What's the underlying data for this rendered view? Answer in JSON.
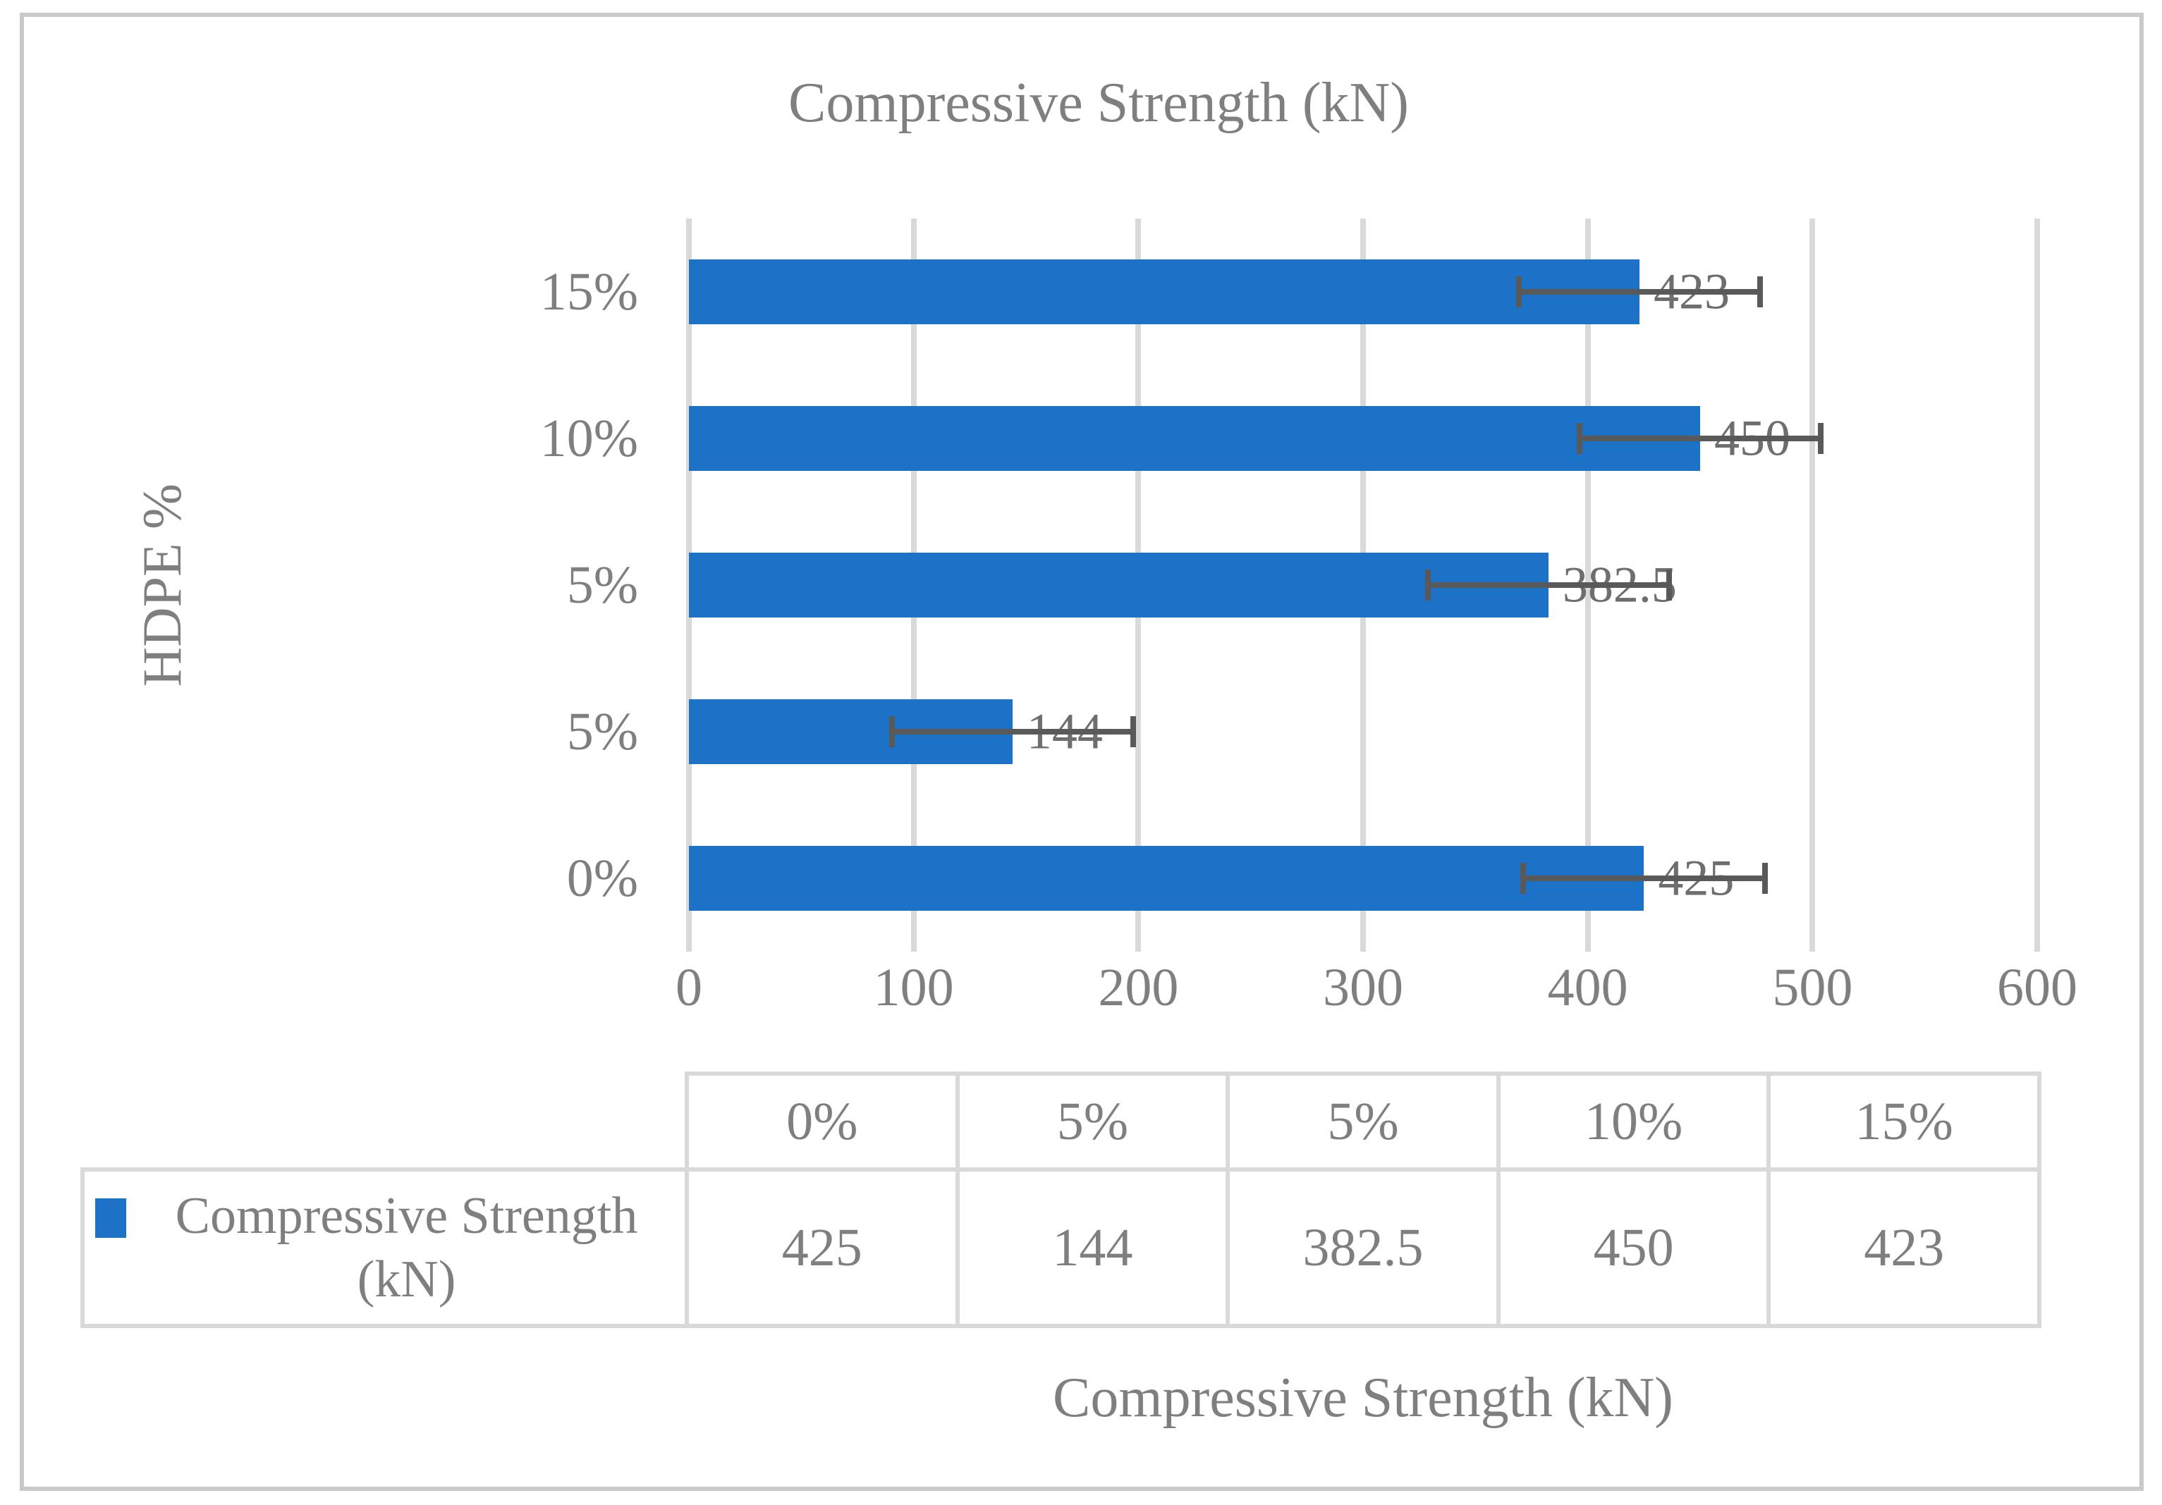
{
  "chart_data": {
    "type": "bar",
    "orientation": "horizontal",
    "title": "Compressive Strength (kN)",
    "ylabel": "HDPE %",
    "xlabel": "Compressive Strength (kN)",
    "categories": [
      "0%",
      "5%",
      "5%",
      "10%",
      "15%"
    ],
    "series": [
      {
        "name": "Compressive Strength (kN)",
        "values": [
          425,
          144,
          382.5,
          450,
          423
        ],
        "error_bar": 55
      }
    ],
    "data_labels": [
      "425",
      "144",
      "382.5",
      "450",
      "423"
    ],
    "xlim": [
      0,
      600
    ],
    "xticks": [
      "0",
      "100",
      "200",
      "300",
      "400",
      "500",
      "600"
    ],
    "grid": "vertical major gridlines",
    "legend_position": "bottom data table"
  },
  "table": {
    "column_headers": [
      "0%",
      "5%",
      "5%",
      "10%",
      "15%"
    ],
    "series_label": "Compressive Strength (kN)",
    "values": [
      "425",
      "144",
      "382.5",
      "450",
      "423"
    ]
  },
  "colors": {
    "bar": "#1B72C6",
    "gridline": "#D9D9D9",
    "table_border": "#D9D9D9",
    "error_bar": "#595959",
    "text": "#7F7F7F",
    "data_label": "#6E6E6E",
    "frame_border": "#C9C9C9",
    "background": "#FFFFFF"
  }
}
